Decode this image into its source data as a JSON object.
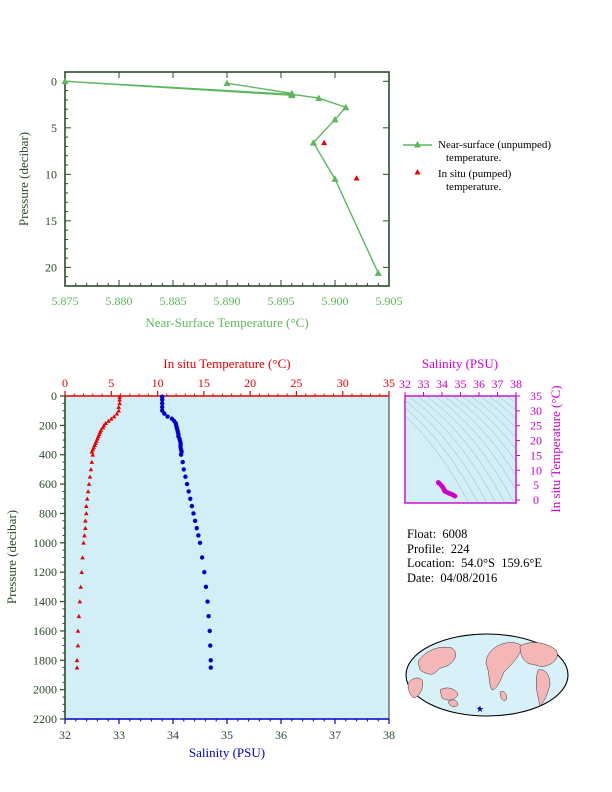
{
  "colors": {
    "green": "#5cb85c",
    "red": "#e60000",
    "blue": "#0000cc",
    "magenta": "#cc00cc",
    "panel_fill": "#d2eff8",
    "axis_dark": "#2c4a2c",
    "land": "#f4b6b6",
    "ocean": "#d8f0f8"
  },
  "top_chart": {
    "xlabel": "Near-Surface Temperature (°C)",
    "ylabel": "Pressure (decibar)",
    "xticks": [
      "5.875",
      "5.880",
      "5.885",
      "5.890",
      "5.895",
      "5.900",
      "5.905"
    ],
    "yticks": [
      "0",
      "5",
      "10",
      "15",
      "20"
    ],
    "legend": {
      "near_line1": "Near-surface (unpumped)",
      "near_line2": "temperature.",
      "insitu_line1": "In situ (pumped)",
      "insitu_line2": "temperature."
    }
  },
  "bottom_chart": {
    "top_xlabel": "In situ Temperature (°C)",
    "bottom_xlabel": "Salinity (PSU)",
    "ylabel": "Pressure (decibar)",
    "temp_ticks": [
      "0",
      "5",
      "10",
      "15",
      "20",
      "25",
      "30",
      "35"
    ],
    "sal_ticks": [
      "32",
      "33",
      "34",
      "35",
      "36",
      "37",
      "38"
    ],
    "pres_ticks": [
      "0",
      "200",
      "400",
      "600",
      "800",
      "1000",
      "1200",
      "1400",
      "1600",
      "1800",
      "2000",
      "2200"
    ]
  },
  "ts_chart": {
    "xlabel": "Salinity (PSU)",
    "ylabel": "In situ Temperature (°C)",
    "xticks": [
      "32",
      "33",
      "34",
      "35",
      "36",
      "37",
      "38"
    ],
    "yticks": [
      "0",
      "5",
      "10",
      "15",
      "20",
      "25",
      "30",
      "35"
    ]
  },
  "info": {
    "float": "Float:  6008",
    "profile": "Profile:  224",
    "location": "Location:  54.0°S  159.6°E",
    "date": "Date:  04/08/2016"
  },
  "chart_data": [
    {
      "type": "line",
      "x_axis": "Near-Surface Temperature (°C)",
      "y_axis": "Pressure (decibar)",
      "xlim": [
        5.875,
        5.905
      ],
      "ylim": [
        22,
        -1
      ],
      "series": [
        {
          "name": "Near-surface (unpumped) temperature.",
          "points": [
            [
              5.89,
              0.2
            ],
            [
              5.896,
              1.3
            ],
            [
              5.896,
              1.5
            ],
            [
              5.875,
              0.0
            ],
            [
              5.896,
              1.4
            ],
            [
              5.8985,
              1.8
            ],
            [
              5.901,
              2.8
            ],
            [
              5.9,
              4.1
            ],
            [
              5.898,
              6.6
            ],
            [
              5.9,
              10.5
            ],
            [
              5.904,
              20.6
            ]
          ]
        },
        {
          "name": "In situ (pumped) temperature.",
          "points": [
            [
              5.899,
              6.6
            ],
            [
              5.902,
              10.4
            ]
          ]
        }
      ]
    },
    {
      "type": "scatter",
      "y_axis": "Pressure (decibar)",
      "ylim": [
        2200,
        0
      ],
      "series": [
        {
          "name": "In situ Temperature (°C)",
          "xlim": [
            0,
            35
          ],
          "points": [
            [
              5.9,
              5
            ],
            [
              5.9,
              25
            ],
            [
              5.9,
              50
            ],
            [
              5.8,
              75
            ],
            [
              5.8,
              100
            ],
            [
              5.6,
              120
            ],
            [
              5.3,
              140
            ],
            [
              5.0,
              155
            ],
            [
              4.7,
              170
            ],
            [
              4.4,
              185
            ],
            [
              4.2,
              200
            ],
            [
              4.1,
              215
            ],
            [
              3.9,
              230
            ],
            [
              3.8,
              245
            ],
            [
              3.7,
              260
            ],
            [
              3.6,
              275
            ],
            [
              3.5,
              290
            ],
            [
              3.4,
              305
            ],
            [
              3.3,
              320
            ],
            [
              3.2,
              335
            ],
            [
              3.1,
              350
            ],
            [
              3.0,
              365
            ],
            [
              2.9,
              380
            ],
            [
              3.0,
              400
            ],
            [
              2.9,
              450
            ],
            [
              2.8,
              500
            ],
            [
              2.7,
              550
            ],
            [
              2.6,
              600
            ],
            [
              2.5,
              650
            ],
            [
              2.4,
              700
            ],
            [
              2.3,
              750
            ],
            [
              2.3,
              800
            ],
            [
              2.2,
              850
            ],
            [
              2.2,
              900
            ],
            [
              2.1,
              950
            ],
            [
              2.0,
              1000
            ],
            [
              1.9,
              1100
            ],
            [
              1.8,
              1200
            ],
            [
              1.7,
              1300
            ],
            [
              1.6,
              1400
            ],
            [
              1.5,
              1500
            ],
            [
              1.4,
              1600
            ],
            [
              1.4,
              1700
            ],
            [
              1.3,
              1800
            ],
            [
              1.3,
              1850
            ]
          ]
        },
        {
          "name": "Salinity (PSU)",
          "xlim": [
            32,
            38
          ],
          "points": [
            [
              33.8,
              5
            ],
            [
              33.8,
              25
            ],
            [
              33.8,
              50
            ],
            [
              33.8,
              75
            ],
            [
              33.8,
              100
            ],
            [
              33.84,
              120
            ],
            [
              33.9,
              140
            ],
            [
              33.98,
              155
            ],
            [
              34.02,
              170
            ],
            [
              34.05,
              185
            ],
            [
              34.06,
              200
            ],
            [
              34.07,
              215
            ],
            [
              34.08,
              230
            ],
            [
              34.09,
              245
            ],
            [
              34.1,
              260
            ],
            [
              34.1,
              275
            ],
            [
              34.12,
              290
            ],
            [
              34.13,
              305
            ],
            [
              34.14,
              320
            ],
            [
              34.14,
              335
            ],
            [
              34.14,
              350
            ],
            [
              34.15,
              365
            ],
            [
              34.16,
              380
            ],
            [
              34.15,
              400
            ],
            [
              34.18,
              450
            ],
            [
              34.2,
              500
            ],
            [
              34.23,
              550
            ],
            [
              34.26,
              600
            ],
            [
              34.29,
              650
            ],
            [
              34.32,
              700
            ],
            [
              34.35,
              750
            ],
            [
              34.38,
              800
            ],
            [
              34.41,
              850
            ],
            [
              34.44,
              900
            ],
            [
              34.47,
              950
            ],
            [
              34.5,
              1000
            ],
            [
              34.54,
              1100
            ],
            [
              34.58,
              1200
            ],
            [
              34.61,
              1300
            ],
            [
              34.64,
              1400
            ],
            [
              34.66,
              1500
            ],
            [
              34.68,
              1600
            ],
            [
              34.69,
              1700
            ],
            [
              34.7,
              1800
            ],
            [
              34.7,
              1850
            ]
          ]
        }
      ]
    },
    {
      "type": "scatter",
      "x_axis": "Salinity (PSU)",
      "y_axis": "In situ Temperature (°C)",
      "xlim": [
        32,
        38
      ],
      "ylim": [
        -1,
        35
      ],
      "points": [
        [
          33.8,
          5.9
        ],
        [
          33.85,
          5.6
        ],
        [
          33.95,
          5.0
        ],
        [
          34.03,
          4.4
        ],
        [
          34.07,
          4.0
        ],
        [
          34.1,
          3.6
        ],
        [
          34.13,
          3.3
        ],
        [
          34.15,
          3.0
        ],
        [
          34.2,
          2.8
        ],
        [
          34.3,
          2.5
        ],
        [
          34.4,
          2.2
        ],
        [
          34.5,
          2.0
        ],
        [
          34.6,
          1.7
        ],
        [
          34.7,
          1.3
        ]
      ]
    }
  ]
}
